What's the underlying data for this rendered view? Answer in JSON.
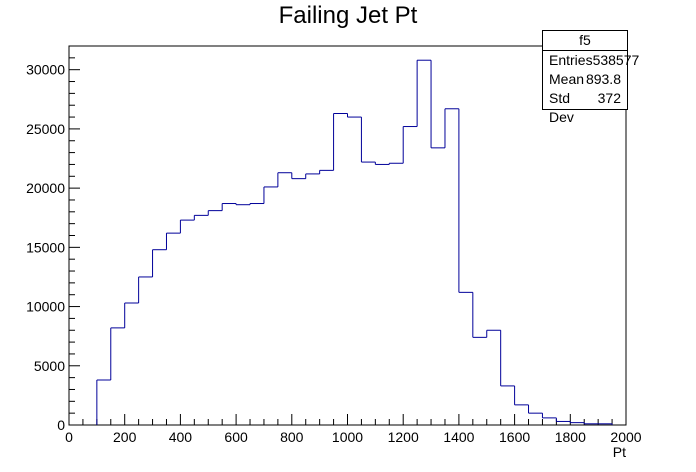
{
  "chart_data": {
    "type": "bar",
    "style": "step-histogram",
    "title": "Failing Jet Pt",
    "xlabel": "Pt",
    "ylabel": "",
    "xlim": [
      0,
      2000
    ],
    "ylim": [
      0,
      32000
    ],
    "bin_width": 50,
    "xticks": [
      0,
      200,
      400,
      600,
      800,
      1000,
      1200,
      1400,
      1600,
      1800,
      2000
    ],
    "yticks": [
      0,
      5000,
      10000,
      15000,
      20000,
      25000,
      30000
    ],
    "line_color": "#000099",
    "x": [
      100,
      150,
      200,
      250,
      300,
      350,
      400,
      450,
      500,
      550,
      600,
      650,
      700,
      750,
      800,
      850,
      900,
      950,
      1000,
      1050,
      1100,
      1150,
      1200,
      1250,
      1300,
      1350,
      1400,
      1450,
      1500,
      1550,
      1600,
      1650,
      1700,
      1750,
      1800,
      1850,
      1900
    ],
    "values": [
      3800,
      8200,
      10300,
      12500,
      14800,
      16200,
      17300,
      17700,
      18100,
      18700,
      18600,
      18700,
      20100,
      21300,
      20800,
      21200,
      21500,
      26300,
      26000,
      22200,
      22000,
      22100,
      25200,
      30800,
      23400,
      26700,
      11200,
      7400,
      8000,
      3300,
      1700,
      1000,
      600,
      300,
      200,
      100,
      100
    ],
    "stats": {
      "name": "f5",
      "rows": [
        {
          "label": "Entries",
          "value": "538577"
        },
        {
          "label": "Mean",
          "value": "893.8"
        },
        {
          "label": "Std Dev",
          "value": "372"
        }
      ]
    }
  }
}
